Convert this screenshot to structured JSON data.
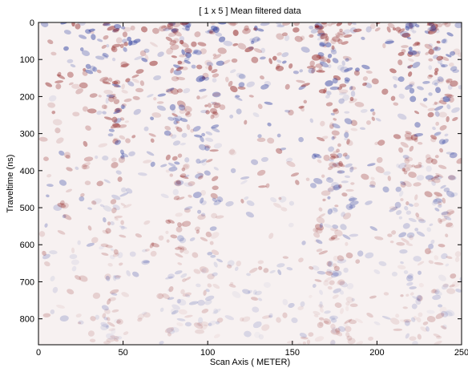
{
  "chart_data": {
    "type": "radargram",
    "title": "[ 1 x 5 ] Mean filtered data",
    "xlabel": "Scan Axis ( METER)",
    "ylabel": "Traveltime (ns)",
    "xlim": [
      0,
      250
    ],
    "xticks": [
      0,
      50,
      100,
      150,
      200,
      250
    ],
    "ylim": [
      870,
      0
    ],
    "yticks": [
      0,
      100,
      200,
      300,
      400,
      500,
      600,
      700,
      800
    ],
    "colormap": [
      "#2b3c9e",
      "#ffffff",
      "#8b1a1a"
    ]
  }
}
